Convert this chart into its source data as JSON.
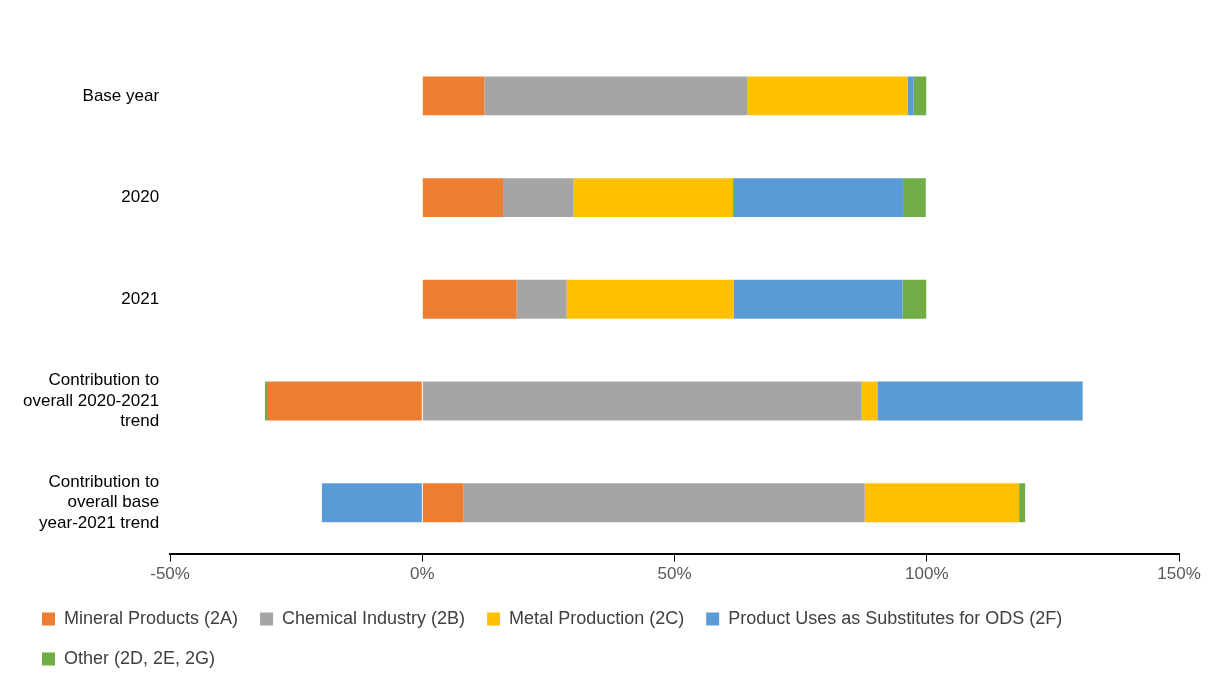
{
  "chart_data": {
    "type": "bar",
    "orientation": "horizontal",
    "stacked": true,
    "categories": [
      "Base year",
      "2020",
      "2021",
      "Contribution to overall 2020-2021 trend",
      "Contribution to overall base year-2021 trend"
    ],
    "series": [
      {
        "name": "Mineral Products (2A)",
        "color": "#ed7d31",
        "values": [
          12.3,
          16.0,
          18.7,
          -30.6,
          8.2
        ]
      },
      {
        "name": "Chemical Industry (2B)",
        "color": "#a5a5a5",
        "values": [
          52.2,
          14.0,
          9.9,
          87.1,
          79.5
        ]
      },
      {
        "name": "Metal Production (2C)",
        "color": "#ffc000",
        "values": [
          31.7,
          31.6,
          33.1,
          3.1,
          30.6
        ]
      },
      {
        "name": "Product Uses as Substitutes for ODS (2F)",
        "color": "#5b9bd5",
        "values": [
          1.2,
          33.7,
          33.5,
          40.7,
          -19.9
        ]
      },
      {
        "name": "Other (2D, 2E, 2G)",
        "color": "#70ad47",
        "values": [
          2.5,
          4.5,
          4.7,
          -0.6,
          1.2
        ]
      }
    ],
    "xlim": [
      -50,
      150
    ],
    "xticks": [
      {
        "value": -50,
        "label": "-50%"
      },
      {
        "value": 0,
        "label": "0%"
      },
      {
        "value": 50,
        "label": "50%"
      },
      {
        "value": 100,
        "label": "100%"
      },
      {
        "value": 150,
        "label": "150%"
      }
    ],
    "grid": false,
    "legend": "bottom"
  }
}
